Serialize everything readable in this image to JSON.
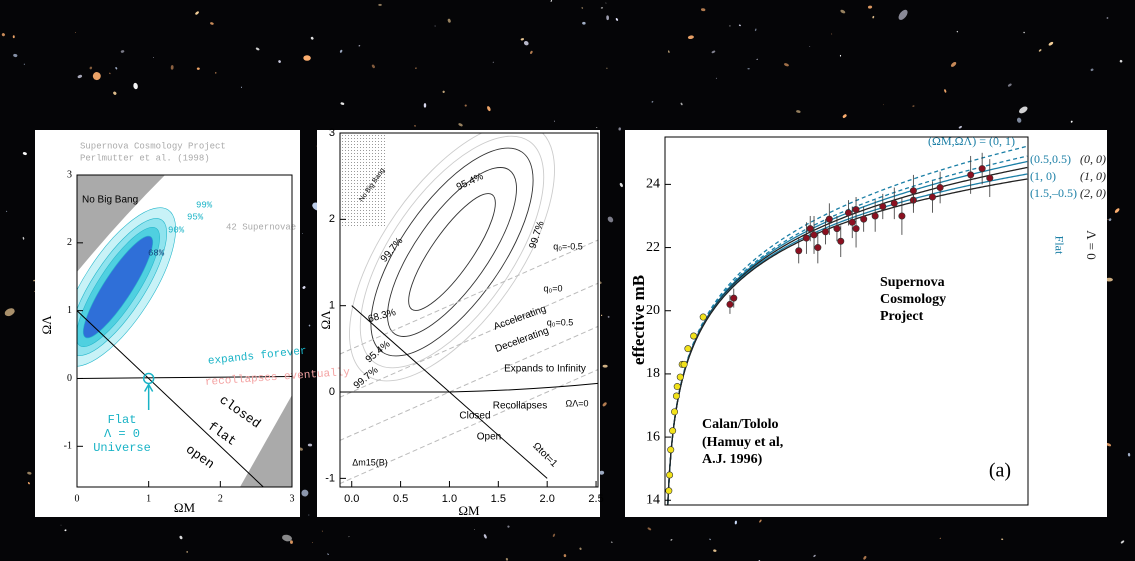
{
  "chart_data": [
    {
      "type": "contour",
      "title": "Supernova Cosmology Project",
      "subtitle": "Perlmutter et al. (1998)",
      "xlabel": "ΩM",
      "ylabel": "ΩΛ",
      "xlim": [
        0,
        3
      ],
      "ylim": [
        -1.6,
        3
      ],
      "xticks": [
        0,
        1,
        2,
        3
      ],
      "yticks": [
        -1,
        0,
        1,
        2,
        3
      ],
      "annotations": [
        "No Big Bang",
        "42 Supernovae",
        "99%",
        "95%",
        "90%",
        "68%",
        "expands forever",
        "recollapses eventually",
        "Flat",
        "Λ = 0",
        "Universe",
        "closed",
        "flat",
        "open"
      ]
    },
    {
      "type": "contour",
      "xlabel": "ΩM",
      "ylabel": "ΩΛ",
      "xlim": [
        -0.12,
        2.52
      ],
      "ylim": [
        -1.1,
        3
      ],
      "xticks": [
        {
          "value": 0,
          "label": "0.0"
        },
        0.5,
        {
          "value": 1,
          "label": "1.0"
        },
        1.5,
        {
          "value": 2,
          "label": "2.0"
        },
        2.5
      ],
      "yticks": [
        -1,
        0,
        1,
        2,
        3
      ],
      "annotations": [
        "No Big Bang",
        "95.4%",
        "99.7%",
        "99.7%",
        "68.3%",
        "95.4%",
        "99.7%",
        "q₀=-0.5",
        "Accelerating",
        "q₀=0",
        "Decelerating",
        "q₀=0.5",
        "Expands to Infinity",
        "Recollapses",
        "ΩΛ=0",
        "Closed",
        "Open",
        "Ωtot=1",
        "Δm15(B)"
      ]
    },
    {
      "type": "scatter",
      "ylabel": "effective mB",
      "xlim": [
        0,
        0.95
      ],
      "ylim": [
        13.85,
        25.5
      ],
      "yticks": [
        14,
        16,
        18,
        20,
        22,
        24
      ],
      "series": [
        {
          "color": "#f2e21a",
          "x": [
            0.01,
            0.012,
            0.015,
            0.02,
            0.025,
            0.03,
            0.032,
            0.04,
            0.045,
            0.05,
            0.06,
            0.075,
            0.1
          ],
          "values": [
            14.3,
            14.8,
            15.6,
            16.2,
            16.8,
            17.3,
            17.6,
            17.9,
            18.3,
            18.3,
            18.8,
            19.2,
            19.8
          ]
        },
        {
          "color": "#8b1020",
          "x": [
            0.17,
            0.18,
            0.35,
            0.37,
            0.38,
            0.39,
            0.4,
            0.42,
            0.43,
            0.45,
            0.46,
            0.48,
            0.49,
            0.5,
            0.5,
            0.52,
            0.55,
            0.57,
            0.6,
            0.62,
            0.65,
            0.65,
            0.7,
            0.72,
            0.8,
            0.83,
            0.85
          ],
          "values": [
            20.2,
            20.4,
            21.9,
            22.3,
            22.6,
            22.4,
            22.0,
            22.5,
            22.9,
            22.6,
            22.2,
            23.1,
            22.8,
            23.2,
            22.6,
            22.9,
            23.0,
            23.3,
            23.4,
            23.0,
            23.5,
            23.8,
            23.6,
            23.9,
            24.3,
            24.5,
            24.2
          ],
          "errors": [
            0.3,
            0.3,
            0.4,
            0.5,
            0.4,
            0.6,
            0.5,
            0.4,
            0.5,
            0.4,
            0.5,
            0.4,
            0.5,
            0.4,
            0.6,
            0.4,
            0.5,
            0.4,
            0.5,
            0.6,
            0.4,
            0.5,
            0.5,
            0.5,
            0.6,
            0.5,
            0.6
          ]
        }
      ],
      "annotations": [
        "(ΩM,ΩΛ) = (0, 1)",
        "(0.5,0.5)",
        "(0, 0)",
        "(1, 0)",
        "(1, 0)",
        "(1.5,–0.5)",
        "(2, 0)",
        "Flat",
        "Λ = 0",
        "Supernova",
        "Cosmology",
        "Project",
        "Calan/Tololo",
        "(Hamuy et al,",
        "A.J. 1996)",
        "(a)"
      ]
    }
  ]
}
